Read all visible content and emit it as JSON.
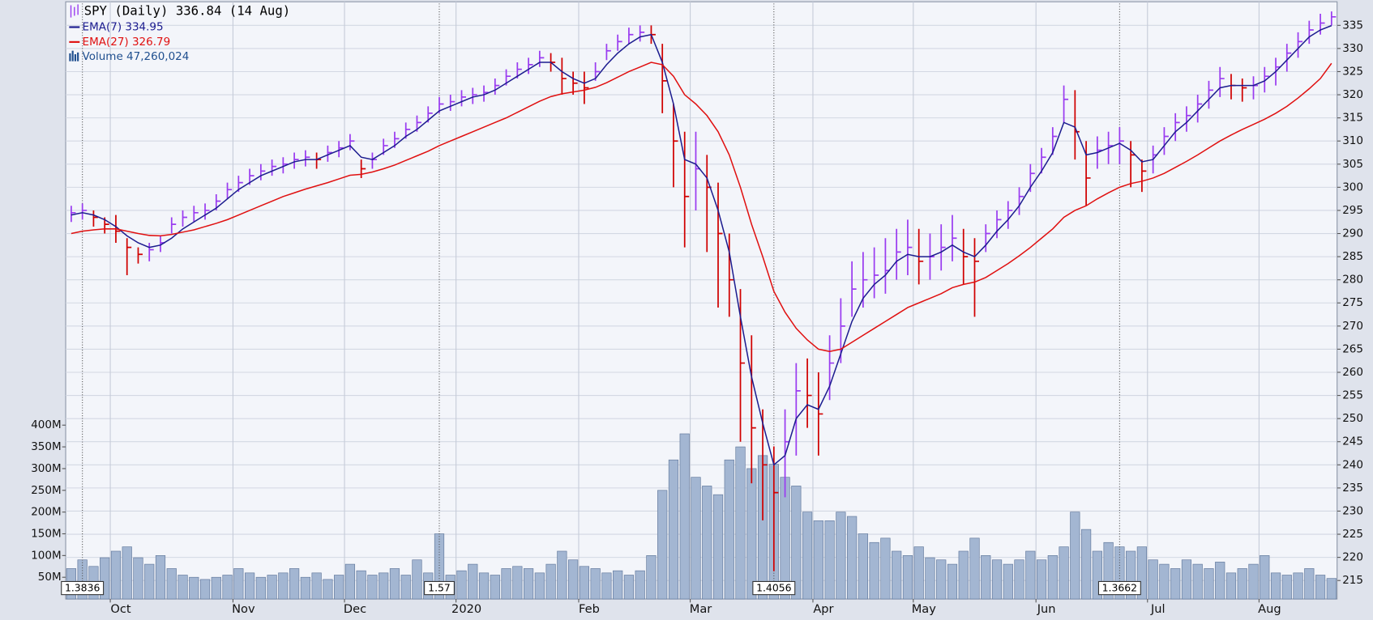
{
  "chart_data": {
    "type": "ohlc",
    "categories": [
      null,
      null,
      null,
      null,
      "Oct",
      null,
      null,
      null,
      null,
      null,
      null,
      null,
      null,
      null,
      null,
      "Nov",
      null,
      null,
      null,
      null,
      null,
      null,
      null,
      null,
      null,
      "Dec",
      null,
      null,
      null,
      null,
      null,
      null,
      null,
      null,
      null,
      "2020",
      null,
      null,
      null,
      null,
      null,
      null,
      null,
      null,
      null,
      null,
      "Feb",
      null,
      null,
      null,
      null,
      null,
      null,
      null,
      null,
      null,
      "Mar",
      null,
      null,
      null,
      null,
      null,
      null,
      null,
      null,
      null,
      null,
      "Apr",
      null,
      null,
      null,
      null,
      null,
      null,
      null,
      null,
      "May",
      null,
      null,
      null,
      null,
      null,
      null,
      null,
      null,
      null,
      null,
      "Jun",
      null,
      null,
      null,
      null,
      null,
      null,
      null,
      null,
      null,
      "Jul",
      null,
      null,
      null,
      null,
      null,
      null,
      null,
      null,
      null,
      "Aug",
      null,
      null,
      null,
      null,
      null,
      null
    ],
    "series": [
      {
        "name": "SPY (Daily) 336.84 (14 Aug)",
        "type": "ohlc",
        "up_color": "#9a3cf0",
        "down_color": "#d00000",
        "high": [
          296,
          296.5,
          295,
          293.5,
          294,
          289,
          287,
          288,
          289.5,
          293.5,
          295,
          296,
          296.5,
          298.5,
          301,
          302.5,
          304,
          305,
          306,
          306.5,
          307.5,
          308,
          307.5,
          309,
          310,
          311.5,
          306,
          307.5,
          310.5,
          312,
          314,
          315.5,
          317.5,
          319.5,
          320,
          321,
          321.5,
          322,
          323.5,
          325.5,
          327,
          328,
          329.5,
          329,
          328,
          325,
          325,
          327,
          331,
          333,
          334.5,
          335,
          335,
          331,
          318,
          312,
          312,
          307,
          301,
          290,
          278,
          268,
          252,
          244,
          252,
          262,
          263,
          260,
          268,
          276,
          284,
          286,
          287,
          289,
          291,
          293,
          291,
          290,
          292,
          294,
          291,
          289,
          292,
          295,
          297,
          300,
          305,
          308.5,
          313,
          322,
          321,
          310,
          311,
          312,
          313,
          310,
          306,
          309,
          313,
          316,
          317.5,
          320,
          323,
          326,
          324.5,
          323.5,
          324,
          326,
          328,
          331,
          333.5,
          336,
          337.5,
          338
        ],
        "low": [
          292.5,
          293,
          291.5,
          290,
          288,
          281,
          283.5,
          284,
          286,
          290,
          291.5,
          292.5,
          293,
          295,
          297.5,
          299,
          300.5,
          301.5,
          302.5,
          303,
          304,
          304.5,
          304,
          305.5,
          306.5,
          308,
          302,
          304,
          307,
          308.5,
          310.5,
          312,
          314,
          316,
          316.5,
          317.5,
          318,
          318.5,
          320,
          322,
          323.5,
          324.5,
          326,
          325,
          320,
          320,
          318,
          323,
          327.5,
          329.5,
          331,
          331.5,
          331,
          316,
          300,
          287,
          295,
          286,
          274,
          272,
          245,
          236,
          228,
          217,
          233,
          242,
          248,
          242,
          254,
          262,
          272,
          274,
          276,
          277,
          280,
          281,
          279,
          280,
          282,
          284,
          279,
          272,
          286,
          289,
          291,
          294,
          299,
          303,
          307,
          314,
          306,
          296,
          304,
          305,
          305,
          300,
          299,
          303,
          307,
          310,
          312,
          314,
          317,
          319.5,
          319,
          318.5,
          319,
          320.5,
          322,
          325,
          328,
          331,
          333,
          335
        ],
        "close": [
          294.5,
          295,
          293.5,
          292,
          290.5,
          287,
          285.5,
          286.5,
          288,
          292,
          293.5,
          294.5,
          295,
          297,
          299.5,
          301,
          302.5,
          303.5,
          304.5,
          305,
          306,
          306.5,
          306,
          307.5,
          308.5,
          310,
          304,
          306,
          309,
          310.5,
          312.5,
          314,
          316,
          318,
          318.5,
          319.5,
          320,
          320.5,
          322,
          324,
          325.5,
          326.5,
          328,
          327,
          323.5,
          322.5,
          321.5,
          325,
          329.5,
          331.5,
          333,
          333.5,
          333,
          323,
          310,
          298,
          304,
          300,
          290,
          280,
          262,
          248,
          240,
          234,
          245,
          256,
          255,
          251,
          262,
          270,
          278,
          280,
          281,
          282,
          286,
          287,
          284,
          285,
          287,
          289,
          285,
          284,
          290,
          293,
          295,
          298,
          303,
          306.5,
          311,
          319,
          312,
          302,
          308,
          309,
          310,
          307,
          303.5,
          307,
          311,
          314,
          315.5,
          318,
          321,
          323.5,
          322,
          321.5,
          322,
          324,
          326,
          329,
          331.5,
          334,
          335.5,
          336.84
        ]
      },
      {
        "name": "EMA(7) 334.95",
        "type": "line",
        "color": "#1c1c8f",
        "values": [
          294,
          294.5,
          294,
          293,
          291.5,
          289.5,
          288,
          287,
          287.5,
          289,
          291,
          292.5,
          294,
          295.5,
          297.5,
          299.5,
          301,
          302.5,
          303.5,
          304.5,
          305.5,
          306,
          306,
          307,
          308,
          309,
          306.5,
          306,
          307.5,
          309,
          311,
          312.5,
          314.5,
          316.5,
          317.5,
          318.5,
          319.5,
          320,
          321,
          322.5,
          324,
          325.5,
          327,
          327,
          325,
          323.5,
          322.5,
          323.5,
          326.5,
          329,
          331,
          332.5,
          333,
          327,
          318,
          306,
          305,
          302,
          295,
          286,
          272,
          259,
          249,
          240,
          242,
          250,
          253,
          252,
          257,
          264,
          271,
          276,
          279,
          281,
          284,
          285.5,
          285,
          285,
          286,
          287.5,
          286,
          285,
          287.5,
          290.5,
          293,
          296,
          300,
          303.5,
          307.5,
          314,
          313,
          307,
          307.5,
          308.5,
          309.5,
          308,
          305.5,
          306,
          309,
          312,
          314,
          316.5,
          319,
          321.5,
          322,
          322,
          322,
          323,
          325,
          327.5,
          330,
          332.5,
          334,
          334.95
        ]
      },
      {
        "name": "EMA(27) 326.79",
        "type": "line",
        "color": "#e01010",
        "values": [
          290,
          290.5,
          290.8,
          291,
          291,
          290.5,
          290,
          289.6,
          289.5,
          289.8,
          290.3,
          290.8,
          291.5,
          292.2,
          293,
          294,
          295,
          296,
          297,
          298,
          298.8,
          299.6,
          300.3,
          301,
          301.8,
          302.6,
          302.8,
          303.3,
          304,
          304.8,
          305.8,
          306.8,
          307.8,
          309,
          310,
          311,
          312,
          313,
          314,
          315,
          316.2,
          317.4,
          318.6,
          319.6,
          320.2,
          320.6,
          321,
          321.6,
          322.6,
          323.8,
          325,
          326,
          327,
          326.5,
          324,
          320,
          318,
          315.5,
          312,
          307,
          300,
          292,
          285,
          277.5,
          273,
          269.5,
          267,
          265,
          264.5,
          265,
          266.5,
          268,
          269.5,
          271,
          272.5,
          274,
          275,
          276,
          277,
          278.3,
          279,
          279.5,
          280.5,
          282,
          283.5,
          285.2,
          287,
          289,
          291,
          293.5,
          295,
          296,
          297.5,
          298.8,
          300,
          300.8,
          301.3,
          302,
          303,
          304.3,
          305.6,
          307,
          308.5,
          310,
          311.3,
          312.5,
          313.6,
          314.7,
          316,
          317.5,
          319.3,
          321.3,
          323.5,
          326.79
        ]
      },
      {
        "name": "Volume 47,260,024",
        "type": "bar",
        "axis": "y2",
        "color": "#a3b6d2",
        "edge": "#5f769a",
        "values": [
          70000000,
          90000000,
          75000000,
          95000000,
          110000000,
          120000000,
          95000000,
          80000000,
          100000000,
          70000000,
          55000000,
          50000000,
          45000000,
          50000000,
          55000000,
          70000000,
          60000000,
          50000000,
          55000000,
          60000000,
          70000000,
          50000000,
          60000000,
          45000000,
          55000000,
          80000000,
          65000000,
          55000000,
          60000000,
          70000000,
          55000000,
          90000000,
          60000000,
          150000000,
          55000000,
          65000000,
          80000000,
          60000000,
          55000000,
          70000000,
          75000000,
          70000000,
          60000000,
          80000000,
          110000000,
          90000000,
          75000000,
          70000000,
          60000000,
          65000000,
          55000000,
          65000000,
          100000000,
          250000000,
          320000000,
          380000000,
          280000000,
          260000000,
          240000000,
          320000000,
          350000000,
          300000000,
          330000000,
          310000000,
          280000000,
          260000000,
          200000000,
          180000000,
          180000000,
          200000000,
          190000000,
          150000000,
          130000000,
          140000000,
          110000000,
          100000000,
          120000000,
          95000000,
          90000000,
          80000000,
          110000000,
          140000000,
          100000000,
          90000000,
          80000000,
          90000000,
          110000000,
          90000000,
          100000000,
          120000000,
          200000000,
          160000000,
          110000000,
          130000000,
          120000000,
          110000000,
          120000000,
          90000000,
          80000000,
          70000000,
          90000000,
          80000000,
          70000000,
          85000000,
          60000000,
          70000000,
          80000000,
          100000000,
          60000000,
          55000000,
          60000000,
          70000000,
          55000000,
          47260024
        ]
      }
    ],
    "ylim": [
      211,
      340.1
    ],
    "yticks": [
      215,
      220,
      225,
      230,
      235,
      240,
      245,
      250,
      255,
      260,
      265,
      270,
      275,
      280,
      285,
      290,
      295,
      300,
      305,
      310,
      315,
      320,
      325,
      330,
      335
    ],
    "y2lim": [
      0,
      1374000000
    ],
    "y2ticks": [
      {
        "value": 50000000,
        "label": "50M"
      },
      {
        "value": 100000000,
        "label": "100M"
      },
      {
        "value": 150000000,
        "label": "150M"
      },
      {
        "value": 200000000,
        "label": "200M"
      },
      {
        "value": 250000000,
        "label": "250M"
      },
      {
        "value": 300000000,
        "label": "300M"
      },
      {
        "value": 350000000,
        "label": "350M"
      },
      {
        "value": 400000000,
        "label": "400M"
      }
    ],
    "grid": true,
    "annotations": [
      {
        "text": "1.3836",
        "index": 1
      },
      {
        "text": "1.57",
        "index": 33
      },
      {
        "text": "1.4056",
        "index": 63
      },
      {
        "text": "1.3662",
        "index": 94
      }
    ]
  }
}
